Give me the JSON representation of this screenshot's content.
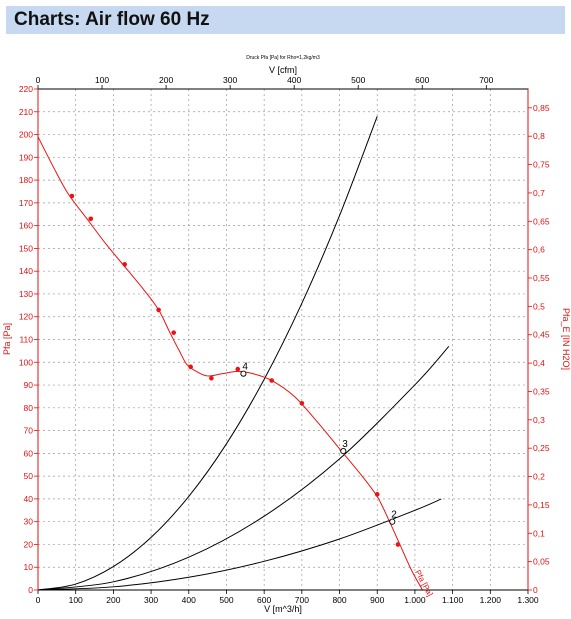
{
  "header": {
    "title": "Charts: Air flow 60 Hz"
  },
  "chart_data": {
    "type": "line",
    "title": "Druck Pfa [Pa] for Rho=1,2kg/m3",
    "xlabel": "V [m^3/h]",
    "x2label": "V [cfm]",
    "ylabel": "Pfa [Pa]",
    "y2label": "Pfa_E [IN H2O]",
    "xlim": [
      0,
      1300
    ],
    "ylim": [
      0,
      220
    ],
    "x2lim": [
      0,
      765.1
    ],
    "y2lim": [
      0,
      0.8832
    ],
    "grid": true,
    "x_ticks": [
      "0",
      "100",
      "200",
      "300",
      "400",
      "500",
      "600",
      "700",
      "800",
      "900",
      "1.000",
      "1.100",
      "1.200",
      "1.300"
    ],
    "x_tick_values": [
      0,
      100,
      200,
      300,
      400,
      500,
      600,
      700,
      800,
      900,
      1000,
      1100,
      1200,
      1300
    ],
    "x2_ticks": [
      "0",
      "100",
      "200",
      "300",
      "400",
      "500",
      "600",
      "700"
    ],
    "x2_tick_values": [
      0,
      100,
      200,
      300,
      400,
      500,
      600,
      700
    ],
    "y_ticks": [
      "0",
      "10",
      "20",
      "30",
      "40",
      "50",
      "60",
      "70",
      "80",
      "90",
      "100",
      "110",
      "120",
      "130",
      "140",
      "150",
      "160",
      "170",
      "180",
      "190",
      "200",
      "210",
      "220"
    ],
    "y_tick_values": [
      0,
      10,
      20,
      30,
      40,
      50,
      60,
      70,
      80,
      90,
      100,
      110,
      120,
      130,
      140,
      150,
      160,
      170,
      180,
      190,
      200,
      210,
      220
    ],
    "y2_ticks": [
      "0",
      "0,05",
      "0,1",
      "0,15",
      "0,2",
      "0,25",
      "0,3",
      "0,35",
      "0,4",
      "0,45",
      "0,5",
      "0,55",
      "0,6",
      "0,65",
      "0,7",
      "0,75",
      "0,8",
      "0,85"
    ],
    "y2_tick_values": [
      0,
      0.05,
      0.1,
      0.15,
      0.2,
      0.25,
      0.3,
      0.35,
      0.4,
      0.45,
      0.5,
      0.55,
      0.6,
      0.65,
      0.7,
      0.75,
      0.8,
      0.85
    ],
    "fan_curve": {
      "label": "Pfa [Pa]",
      "color": "#ee1111",
      "x": [
        0,
        40,
        80,
        130,
        180,
        230,
        280,
        320,
        350,
        375,
        395,
        420,
        450,
        490,
        530,
        570,
        620,
        680,
        740,
        800,
        860,
        900,
        930,
        960,
        990,
        1020
      ],
      "y": [
        199,
        186,
        174,
        163,
        152,
        142,
        132,
        123,
        113,
        105,
        99,
        96,
        94,
        95,
        96,
        95,
        92,
        85,
        74,
        62,
        50,
        41,
        31,
        20,
        9,
        0
      ],
      "markers_x": [
        90,
        140,
        230,
        320,
        360,
        405,
        460,
        530,
        620,
        700,
        900,
        955
      ],
      "markers_y": [
        173,
        163,
        143,
        123,
        113,
        98,
        93,
        97,
        92,
        82,
        42,
        20
      ]
    },
    "system_curves": [
      {
        "x": [
          0,
          100,
          200,
          300,
          400,
          500,
          600,
          700,
          800,
          900
        ],
        "y": [
          0,
          2.6,
          10.3,
          23.1,
          41.1,
          64.2,
          92.5,
          125.9,
          164.4,
          208
        ]
      },
      {
        "x": [
          0,
          200,
          400,
          600,
          800,
          1000,
          1090
        ],
        "y": [
          0,
          3.6,
          14.4,
          32.4,
          57.6,
          90.1,
          107
        ]
      },
      {
        "x": [
          0,
          200,
          400,
          600,
          800,
          1000,
          1070
        ],
        "y": [
          0,
          1.4,
          5.6,
          12.6,
          22.4,
          35,
          40
        ]
      }
    ],
    "operating_points": [
      {
        "label": "4",
        "x": 545,
        "y": 95
      },
      {
        "label": "3",
        "x": 810,
        "y": 61
      },
      {
        "label": "2",
        "x": 940,
        "y": 30
      }
    ],
    "curve_tag": "Pfa [Pa]"
  }
}
